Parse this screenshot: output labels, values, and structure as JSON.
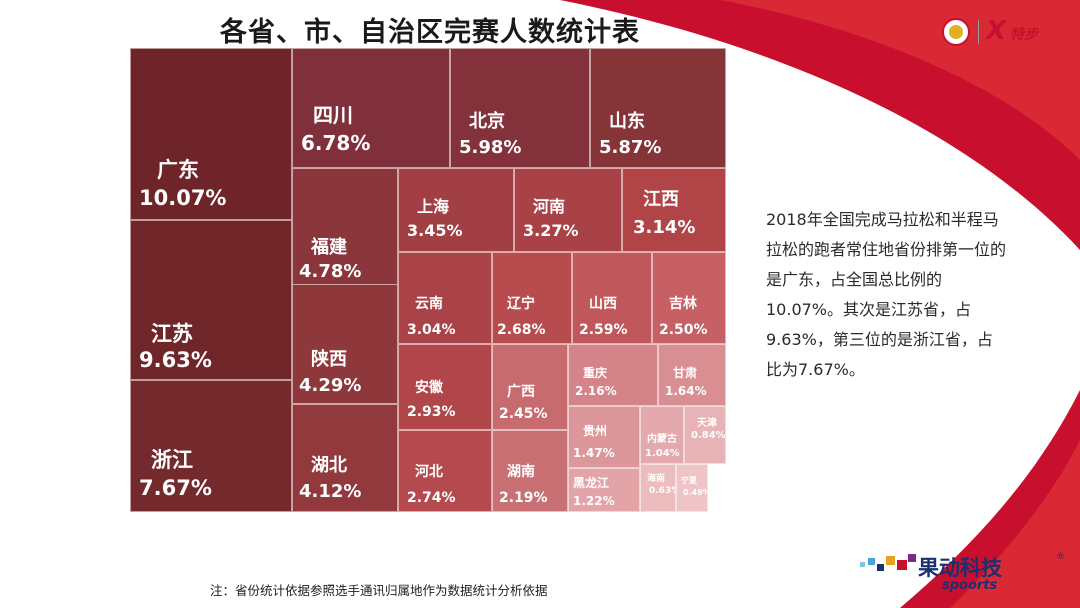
{
  "title": "各省、市、自治区完赛人数统计表",
  "description": "2018年全国完成马拉松和半程马拉松的跑者常住地省份排第一位的是广东，占全国总比例的10.07%。其次是江苏省，占9.63%，第三位的是浙江省，占比为7.67%。",
  "footnote": "注：省份统计依据参照选手通讯归属地作为数据统计分析依据",
  "brand": {
    "name": "果动科技",
    "sub": "spoorts",
    "reg": "®"
  },
  "logo": {
    "icon": "x-sport-logo-icon",
    "text": "特步"
  },
  "colors": {
    "dark": "#6e2428",
    "mid": "#b03a40",
    "light": "#d98c91",
    "lightest": "#f0d4d6",
    "accent": "#c8102e"
  },
  "chart_data": {
    "type": "treemap",
    "title": "各省、市、自治区完赛人数统计表",
    "unit": "%",
    "items": [
      {
        "name": "广东",
        "value": "10.07%"
      },
      {
        "name": "江苏",
        "value": "9.63%"
      },
      {
        "name": "浙江",
        "value": "7.67%"
      },
      {
        "name": "四川",
        "value": "6.78%"
      },
      {
        "name": "北京",
        "value": "5.98%"
      },
      {
        "name": "山东",
        "value": "5.87%"
      },
      {
        "name": "福建",
        "value": "4.78%"
      },
      {
        "name": "陕西",
        "value": "4.29%"
      },
      {
        "name": "湖北",
        "value": "4.12%"
      },
      {
        "name": "上海",
        "value": "3.45%"
      },
      {
        "name": "河南",
        "value": "3.27%"
      },
      {
        "name": "江西",
        "value": "3.14%"
      },
      {
        "name": "云南",
        "value": "3.04%"
      },
      {
        "name": "辽宁",
        "value": "2.68%"
      },
      {
        "name": "山西",
        "value": "2.59%"
      },
      {
        "name": "吉林",
        "value": "2.50%"
      },
      {
        "name": "安徽",
        "value": "2.93%"
      },
      {
        "name": "广西",
        "value": "2.45%"
      },
      {
        "name": "重庆",
        "value": "2.16%"
      },
      {
        "name": "甘肃",
        "value": "1.64%"
      },
      {
        "name": "河北",
        "value": "2.74%"
      },
      {
        "name": "湖南",
        "value": "2.19%"
      },
      {
        "name": "贵州",
        "value": "1.47%"
      },
      {
        "name": "内蒙古",
        "value": "1.04%"
      },
      {
        "name": "天津",
        "value": "0.84%"
      },
      {
        "name": "黑龙江",
        "value": "1.22%"
      },
      {
        "name": "海南",
        "value": "0.63%"
      },
      {
        "name": "宁夏",
        "value": "0.49%"
      }
    ]
  }
}
